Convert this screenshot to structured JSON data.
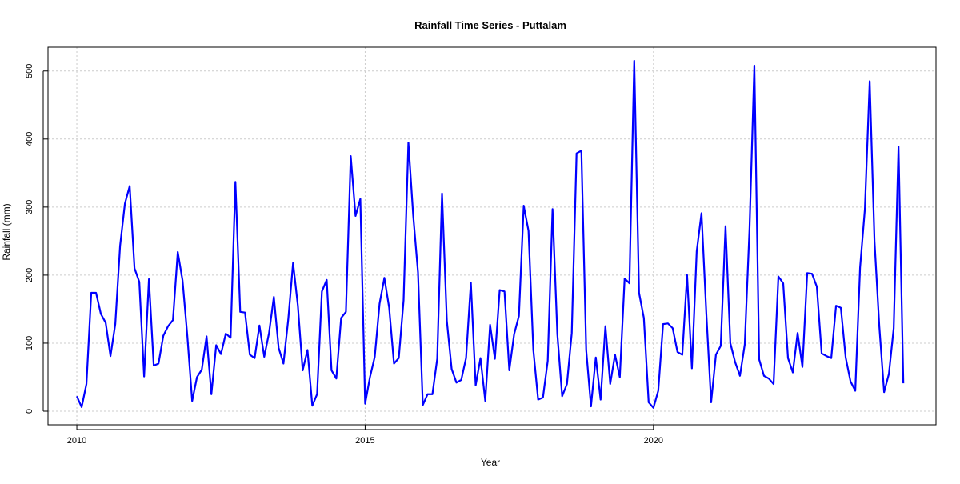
{
  "chart_data": {
    "type": "line",
    "title": "Rainfall Time Series - Puttalam",
    "xlabel": "Year",
    "ylabel": "Rainfall (mm)",
    "xlim": [
      2009.5,
      2024.9
    ],
    "ylim": [
      -20,
      535
    ],
    "x_ticks": [
      2010,
      2015,
      2020
    ],
    "y_ticks": [
      0,
      100,
      200,
      300,
      400,
      500
    ],
    "grid": true,
    "legend": "none",
    "line_color": "#0000ff",
    "grid_color": "#cccccc",
    "series": [
      {
        "start_year": 2010,
        "start_month": 1,
        "frequency": "monthly",
        "values": [
          22,
          6,
          40,
          174,
          174,
          143,
          130,
          81,
          128,
          243,
          305,
          331,
          210,
          190,
          51,
          194,
          67,
          70,
          111,
          125,
          134,
          234,
          192,
          110,
          15,
          50,
          61,
          110,
          25,
          97,
          84,
          114,
          108,
          337,
          146,
          145,
          83,
          78,
          126,
          80,
          115,
          168,
          93,
          70,
          135,
          218,
          155,
          60,
          90,
          8,
          25,
          176,
          193,
          60,
          48,
          137,
          146,
          375,
          287,
          312,
          11,
          50,
          80,
          158,
          196,
          152,
          70,
          78,
          163,
          395,
          288,
          204,
          9,
          25,
          25,
          77,
          320,
          133,
          62,
          42,
          46,
          78,
          189,
          38,
          78,
          15,
          127,
          77,
          178,
          176,
          60,
          113,
          140,
          302,
          265,
          90,
          17,
          20,
          74,
          297,
          113,
          22,
          40,
          115,
          379,
          383,
          90,
          7,
          79,
          17,
          125,
          40,
          83,
          50,
          195,
          188,
          515,
          174,
          137,
          13,
          5,
          30,
          128,
          129,
          122,
          87,
          83,
          200,
          63,
          235,
          291,
          144,
          13,
          83,
          96,
          272,
          100,
          72,
          52,
          98,
          270,
          508,
          76,
          52,
          48,
          40,
          198,
          188,
          78,
          57,
          115,
          65,
          203,
          202,
          183,
          85,
          81,
          78,
          155,
          152,
          79,
          44,
          30,
          211,
          297,
          485,
          250,
          125,
          28,
          55,
          122,
          389,
          41
        ]
      }
    ]
  }
}
